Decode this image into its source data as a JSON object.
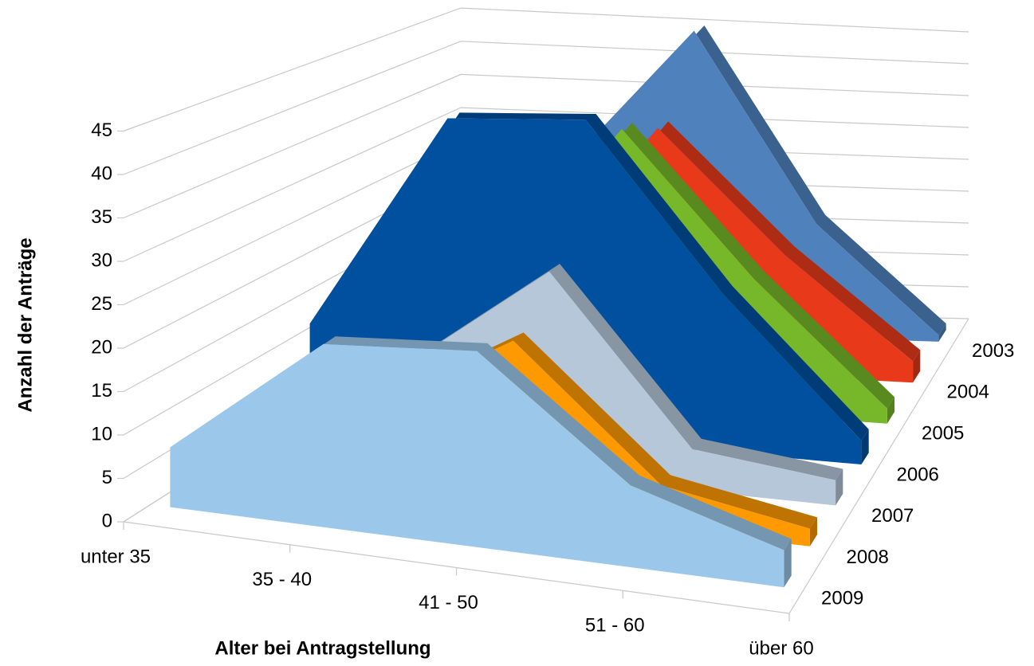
{
  "chart_data": {
    "type": "area3d",
    "x_label": "Alter bei Antragstellung",
    "y_label": "Anzahl der Anträge",
    "categories": [
      "unter 35",
      "35 - 40",
      "41 - 50",
      "51 - 60",
      "über 60"
    ],
    "ylim": [
      0,
      45
    ],
    "yticks": [
      0,
      5,
      10,
      15,
      20,
      25,
      30,
      35,
      40,
      45
    ],
    "grid": true,
    "series": [
      {
        "name": "2003",
        "color": "#4f81bd",
        "values": [
          8,
          25,
          45,
          17,
          1
        ]
      },
      {
        "name": "2004",
        "color": "#e8391a",
        "values": [
          4,
          12,
          34,
          17,
          3
        ]
      },
      {
        "name": "2005",
        "color": "#77b82a",
        "values": [
          5,
          15,
          37,
          18,
          2
        ]
      },
      {
        "name": "2006",
        "color": "#0050a0",
        "values": [
          12,
          40,
          41,
          20,
          3
        ]
      },
      {
        "name": "2007",
        "color": "#b5c7d9",
        "values": [
          5,
          12,
          25,
          5,
          3
        ]
      },
      {
        "name": "2008",
        "color": "#ff9900",
        "values": [
          3,
          10,
          20,
          5,
          2
        ]
      },
      {
        "name": "2009",
        "color": "#9bc8ea",
        "values": [
          7,
          21,
          22,
          9,
          4
        ]
      }
    ]
  }
}
